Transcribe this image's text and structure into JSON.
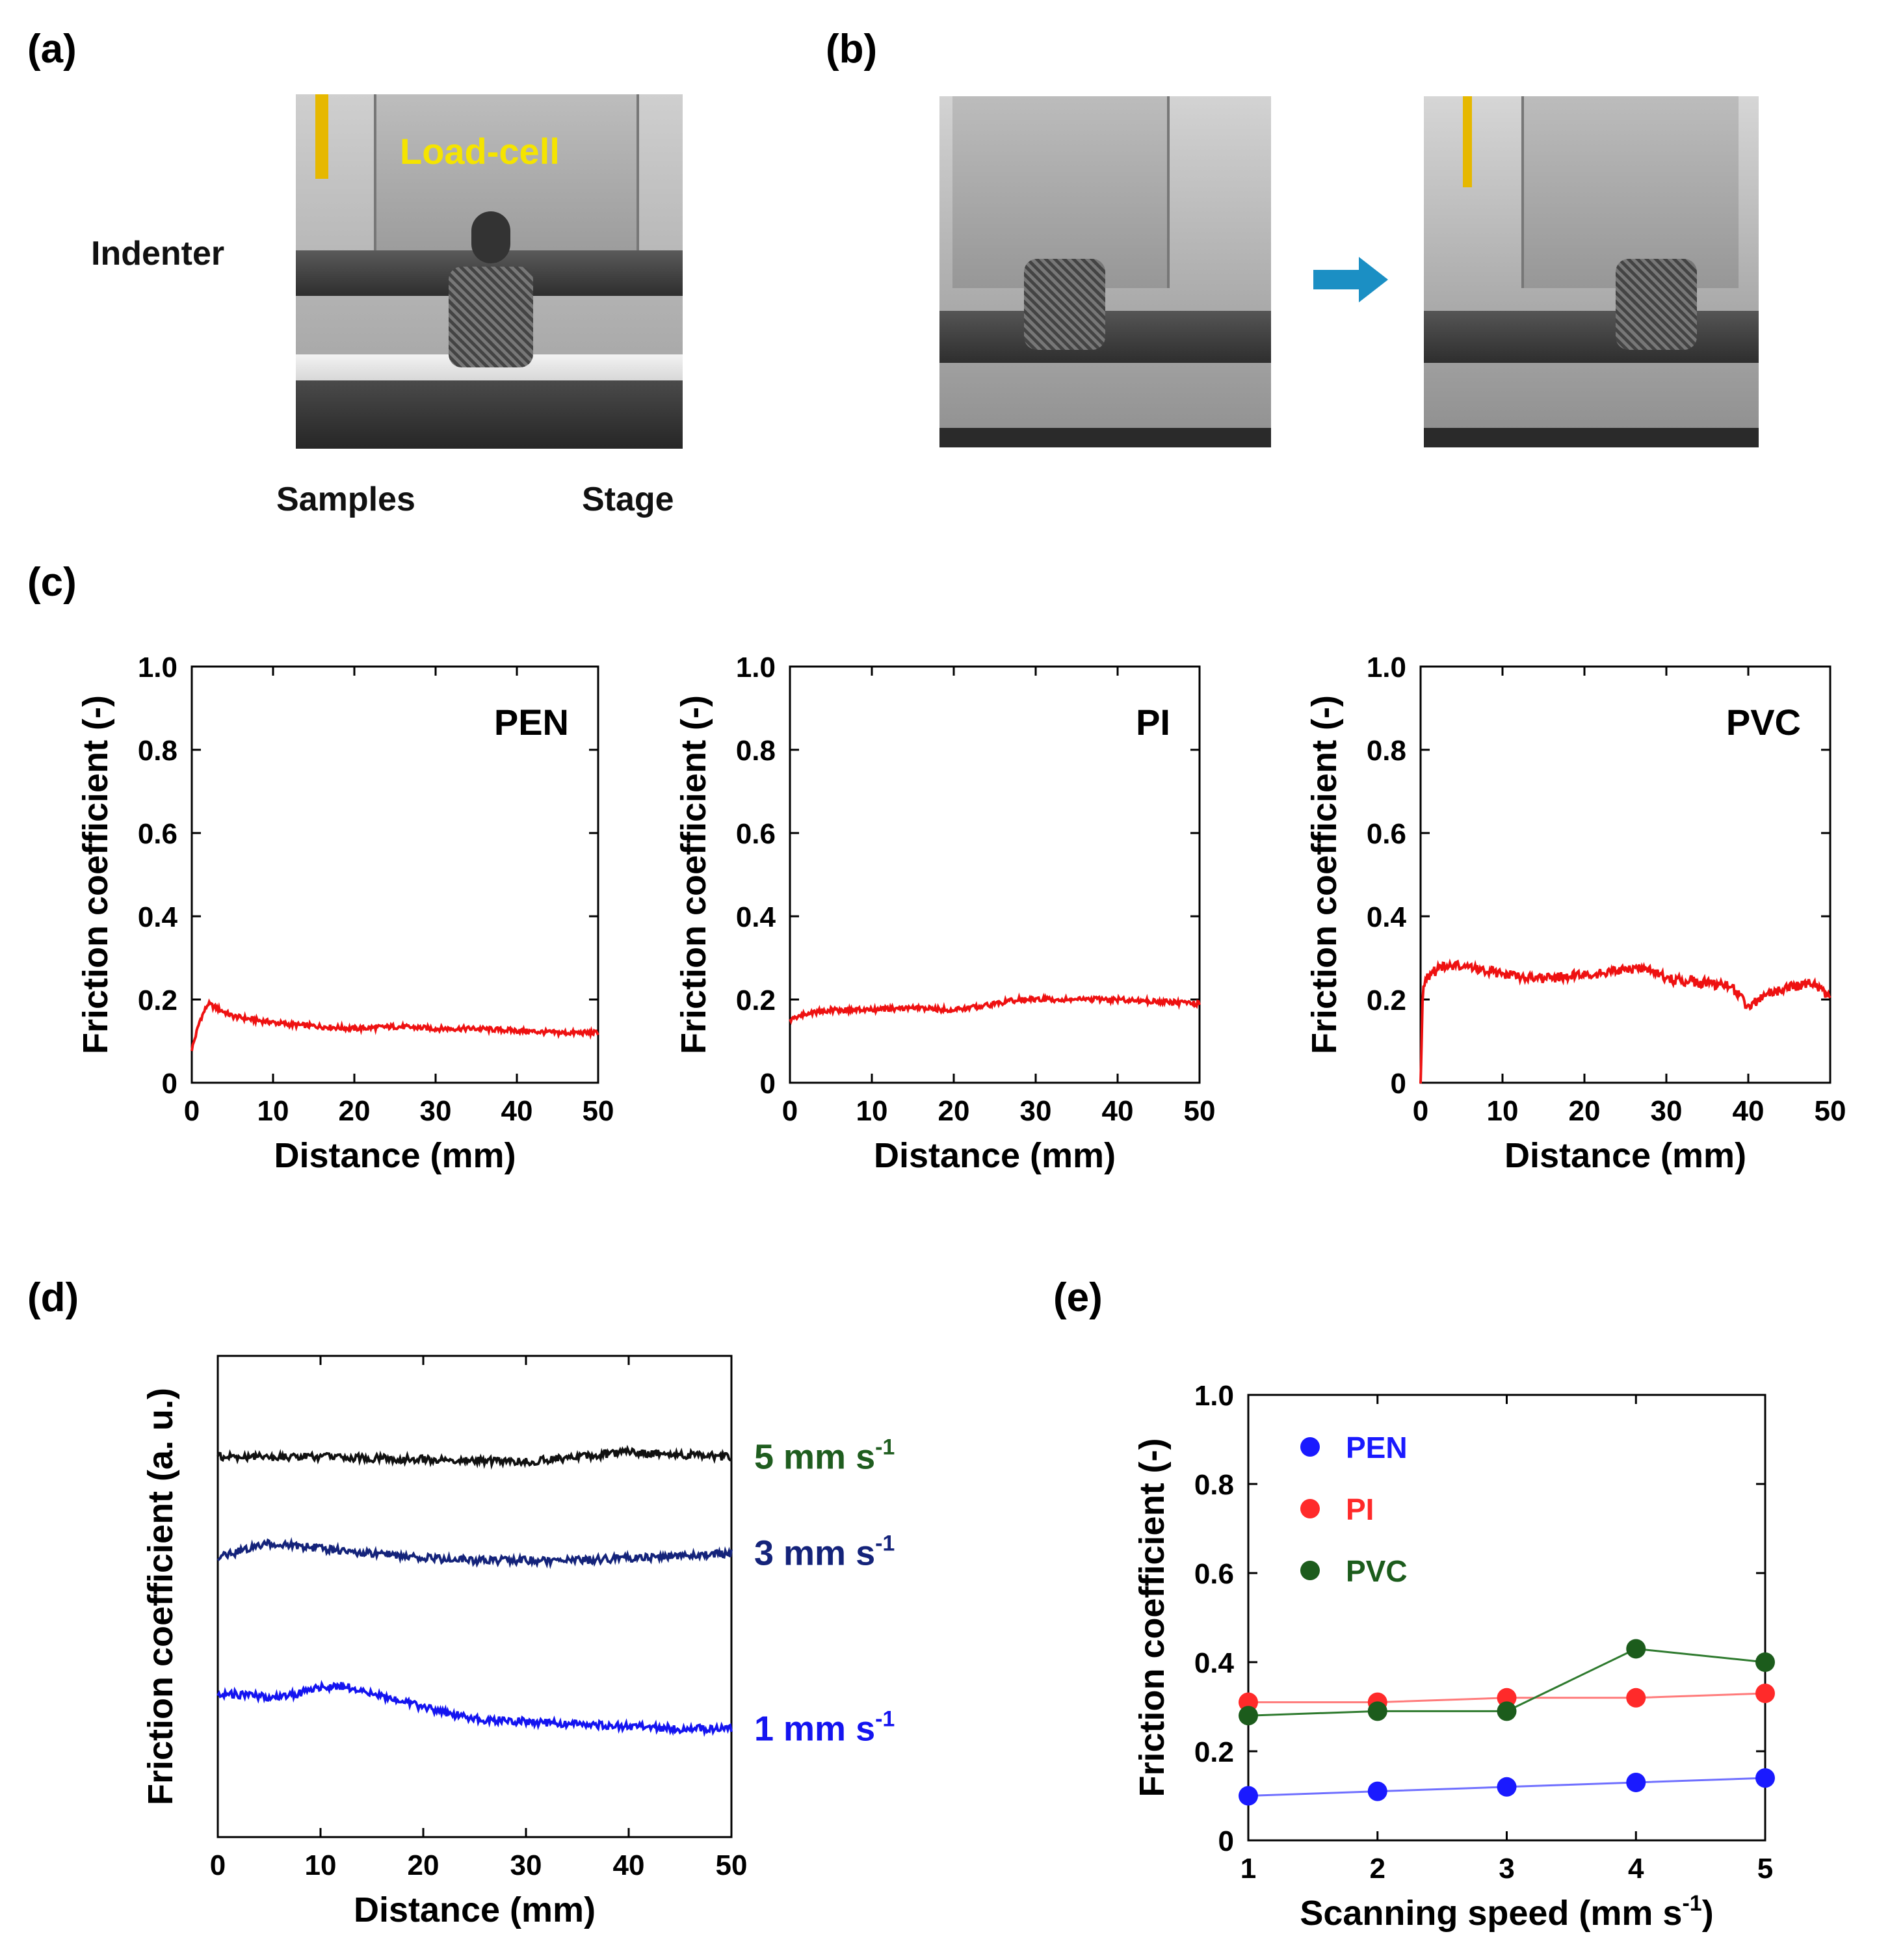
{
  "panels": {
    "a": {
      "label": "(a)",
      "annotations": {
        "load_cell": "Load-cell",
        "indenter": "Indenter",
        "samples": "Samples",
        "stage": "Stage"
      }
    },
    "b": {
      "label": "(b)"
    },
    "c": {
      "label": "(c)"
    },
    "d": {
      "label": "(d)"
    },
    "e": {
      "label": "(e)"
    }
  },
  "colors": {
    "red": "#ee1111",
    "black": "#111111",
    "navy": "#14237a",
    "blue": "#1414f0",
    "green": "#1f5d1f",
    "pen": "#1a1aff",
    "pi": "#ff2a2a",
    "pvc": "#1c5c1c",
    "arrow": "#1b8fc4",
    "pen_line": "#6f6fff",
    "pi_line": "#ff7a7a",
    "pvc_line": "#2e7a2e"
  },
  "chart_data": [
    {
      "type": "line",
      "panel": "c1",
      "annotation": "PEN",
      "xlabel": "Distance (mm)",
      "ylabel": "Friction coefficient (-)",
      "xlim": [
        0,
        50
      ],
      "ylim": [
        0,
        1.0
      ],
      "xticks": [
        "0",
        "10",
        "20",
        "30",
        "40",
        "50"
      ],
      "yticks": [
        "0",
        "0.2",
        "0.4",
        "0.6",
        "0.8",
        "1.0"
      ],
      "series": [
        {
          "color": "red",
          "x": [
            0,
            1,
            2,
            3,
            5,
            8,
            12,
            16,
            20,
            25,
            30,
            35,
            40,
            45,
            50
          ],
          "y": [
            0.08,
            0.15,
            0.19,
            0.18,
            0.16,
            0.15,
            0.14,
            0.135,
            0.13,
            0.135,
            0.13,
            0.13,
            0.125,
            0.12,
            0.12
          ]
        }
      ]
    },
    {
      "type": "line",
      "panel": "c2",
      "annotation": "PI",
      "xlabel": "Distance (mm)",
      "ylabel": "Friction coefficient (-)",
      "xlim": [
        0,
        50
      ],
      "ylim": [
        0,
        1.0
      ],
      "xticks": [
        "0",
        "10",
        "20",
        "30",
        "40",
        "50"
      ],
      "yticks": [
        "0",
        "0.2",
        "0.4",
        "0.6",
        "0.8",
        "1.0"
      ],
      "series": [
        {
          "color": "red",
          "x": [
            0,
            1,
            3,
            5,
            10,
            15,
            20,
            22,
            25,
            28,
            30,
            35,
            40,
            45,
            50
          ],
          "y": [
            0.15,
            0.16,
            0.17,
            0.175,
            0.175,
            0.18,
            0.175,
            0.18,
            0.19,
            0.2,
            0.2,
            0.2,
            0.2,
            0.195,
            0.19
          ]
        }
      ]
    },
    {
      "type": "line",
      "panel": "c3",
      "annotation": "PVC",
      "xlabel": "Distance (mm)",
      "ylabel": "Friction coefficient (-)",
      "xlim": [
        0,
        50
      ],
      "ylim": [
        0,
        1.0
      ],
      "xticks": [
        "0",
        "10",
        "20",
        "30",
        "40",
        "50"
      ],
      "yticks": [
        "0",
        "0.2",
        "0.4",
        "0.6",
        "0.8",
        "1.0"
      ],
      "series": [
        {
          "color": "red",
          "x": [
            0,
            0.3,
            1,
            3,
            5,
            8,
            10,
            15,
            20,
            25,
            28,
            30,
            35,
            38,
            40,
            42,
            45,
            48,
            50
          ],
          "y": [
            0.0,
            0.24,
            0.26,
            0.28,
            0.28,
            0.27,
            0.26,
            0.25,
            0.26,
            0.27,
            0.275,
            0.25,
            0.24,
            0.23,
            0.18,
            0.21,
            0.23,
            0.24,
            0.2
          ]
        }
      ]
    },
    {
      "type": "line",
      "panel": "d",
      "xlabel": "Distance (mm)",
      "ylabel": "Friction coefficient (a. u.)",
      "xlim": [
        0,
        50
      ],
      "ylim": [
        0,
        1.0
      ],
      "xticks": [
        "0",
        "10",
        "20",
        "30",
        "40",
        "50"
      ],
      "series": [
        {
          "name": "5 mm s-1",
          "label": "5 mm s",
          "sup": "-1",
          "label_color": "green",
          "color": "black",
          "x": [
            0,
            10,
            20,
            30,
            35,
            40,
            45,
            50
          ],
          "y": [
            0.79,
            0.79,
            0.785,
            0.78,
            0.79,
            0.8,
            0.795,
            0.79
          ]
        },
        {
          "name": "3 mm s-1",
          "label": "3 mm s",
          "sup": "-1",
          "label_color": "navy",
          "color": "navy",
          "x": [
            0,
            3,
            5,
            8,
            10,
            15,
            20,
            25,
            30,
            35,
            40,
            45,
            50
          ],
          "y": [
            0.58,
            0.6,
            0.61,
            0.605,
            0.6,
            0.59,
            0.58,
            0.575,
            0.575,
            0.575,
            0.58,
            0.585,
            0.59
          ]
        },
        {
          "name": "1 mm s-1",
          "label": "1 mm s",
          "sup": "-1",
          "label_color": "blue",
          "color": "blue",
          "x": [
            0,
            5,
            8,
            10,
            12,
            15,
            20,
            25,
            30,
            35,
            40,
            45,
            50
          ],
          "y": [
            0.3,
            0.29,
            0.3,
            0.31,
            0.315,
            0.3,
            0.27,
            0.245,
            0.24,
            0.235,
            0.23,
            0.225,
            0.225
          ]
        }
      ]
    },
    {
      "type": "line",
      "panel": "e",
      "xlabel": "Scanning speed (mm s",
      "xlabel_sup": "-1",
      "xlabel_tail": ")",
      "ylabel": "Friction coefficient (-)",
      "xlim": [
        1,
        5
      ],
      "ylim": [
        0,
        1.0
      ],
      "xticks": [
        "1",
        "2",
        "3",
        "4",
        "5"
      ],
      "yticks": [
        "0",
        "0.2",
        "0.4",
        "0.6",
        "0.8",
        "1.0"
      ],
      "legend_position": "top-left",
      "series": [
        {
          "name": "PEN",
          "color": "pen",
          "line": "pen_line",
          "x": [
            1,
            2,
            3,
            4,
            5
          ],
          "y": [
            0.1,
            0.11,
            0.12,
            0.13,
            0.14
          ]
        },
        {
          "name": "PI",
          "color": "pi",
          "line": "pi_line",
          "x": [
            1,
            2,
            3,
            4,
            5
          ],
          "y": [
            0.31,
            0.31,
            0.32,
            0.32,
            0.33
          ]
        },
        {
          "name": "PVC",
          "color": "pvc",
          "line": "pvc_line",
          "x": [
            1,
            2,
            3,
            4,
            5
          ],
          "y": [
            0.28,
            0.29,
            0.29,
            0.43,
            0.4
          ]
        }
      ]
    }
  ]
}
